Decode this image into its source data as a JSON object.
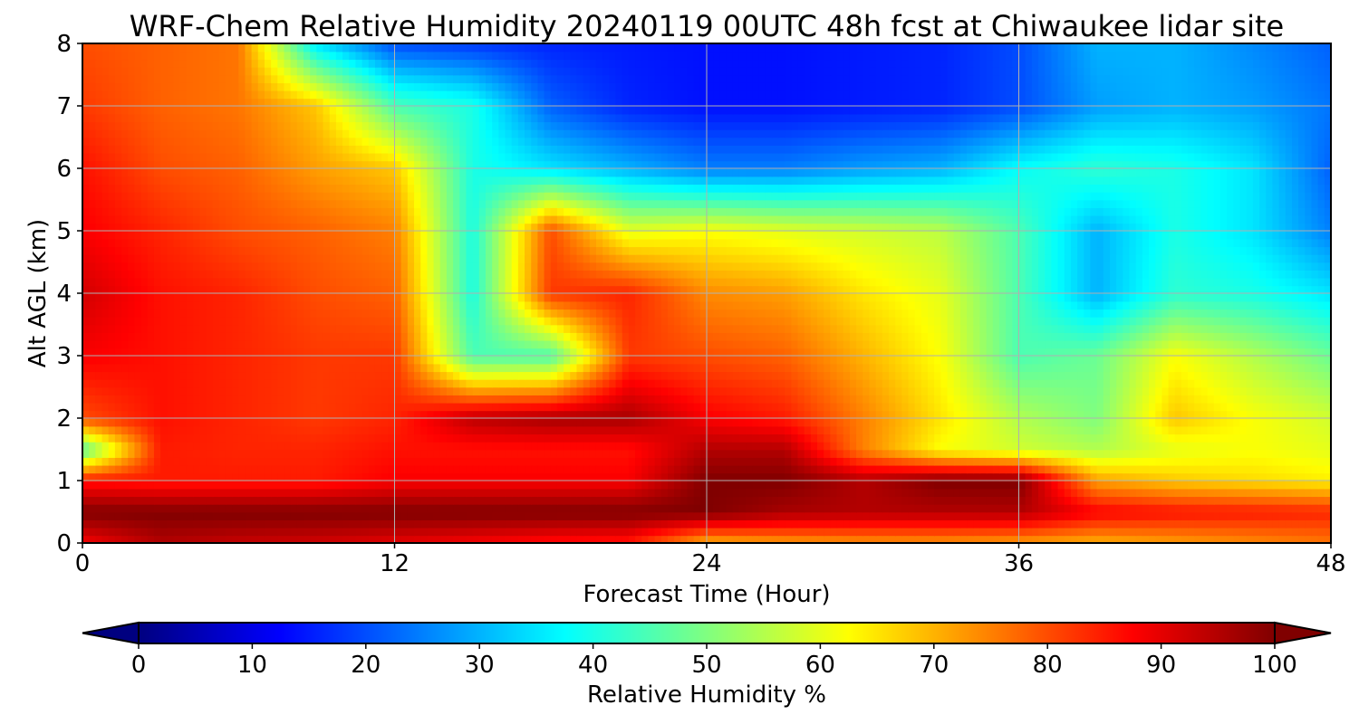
{
  "chart_data": {
    "type": "heatmap",
    "title": "WRF-Chem Relative Humidity 20240119 00UTC 48h fcst at Chiwaukee lidar site",
    "xlabel": "Forecast Time (Hour)",
    "ylabel": "Alt AGL (km)",
    "xlim": [
      0,
      48
    ],
    "ylim": [
      0,
      8
    ],
    "x_ticks": [
      "0",
      "12",
      "24",
      "36",
      "48"
    ],
    "y_ticks": [
      "0",
      "1",
      "2",
      "3",
      "4",
      "5",
      "6",
      "7",
      "8"
    ],
    "grid": true,
    "colorbar": {
      "label": "Relative Humidity %",
      "range": [
        0,
        100
      ],
      "ticks": [
        "0",
        "10",
        "20",
        "30",
        "40",
        "50",
        "60",
        "70",
        "80",
        "90",
        "100"
      ],
      "colormap": "jet",
      "extend": "both",
      "placement": "bottom"
    },
    "x": [
      0,
      3,
      6,
      9,
      12,
      15,
      18,
      21,
      24,
      27,
      30,
      33,
      36,
      39,
      42,
      45,
      48
    ],
    "y": [
      0,
      0.5,
      1,
      1.5,
      2,
      3,
      4,
      5,
      6,
      7,
      8
    ],
    "z": [
      [
        88,
        95,
        93,
        92,
        90,
        88,
        86,
        85,
        70,
        72,
        73,
        73,
        72,
        70,
        72,
        74,
        76
      ],
      [
        100,
        100,
        100,
        100,
        100,
        100,
        100,
        100,
        100,
        96,
        95,
        95,
        95,
        88,
        86,
        85,
        84
      ],
      [
        86,
        85,
        85,
        85,
        88,
        88,
        88,
        88,
        100,
        100,
        95,
        100,
        100,
        72,
        68,
        66,
        64
      ],
      [
        45,
        85,
        84,
        84,
        86,
        86,
        86,
        86,
        95,
        95,
        75,
        62,
        58,
        55,
        60,
        62,
        60
      ],
      [
        80,
        86,
        84,
        82,
        84,
        94,
        96,
        96,
        88,
        85,
        75,
        65,
        55,
        50,
        68,
        62,
        58
      ],
      [
        88,
        86,
        84,
        82,
        82,
        45,
        45,
        82,
        80,
        78,
        70,
        62,
        45,
        48,
        62,
        55,
        48
      ],
      [
        92,
        86,
        84,
        80,
        78,
        40,
        82,
        84,
        74,
        72,
        65,
        60,
        45,
        30,
        42,
        40,
        35
      ],
      [
        88,
        84,
        80,
        78,
        75,
        40,
        80,
        60,
        62,
        60,
        58,
        56,
        45,
        30,
        40,
        35,
        25
      ],
      [
        86,
        80,
        78,
        72,
        68,
        40,
        35,
        30,
        25,
        25,
        28,
        30,
        38,
        42,
        40,
        35,
        22
      ],
      [
        82,
        78,
        76,
        68,
        45,
        40,
        22,
        16,
        14,
        14,
        15,
        16,
        20,
        28,
        30,
        28,
        24
      ],
      [
        80,
        78,
        76,
        35,
        20,
        18,
        16,
        15,
        14,
        14,
        15,
        16,
        20,
        30,
        30,
        26,
        22
      ]
    ]
  }
}
